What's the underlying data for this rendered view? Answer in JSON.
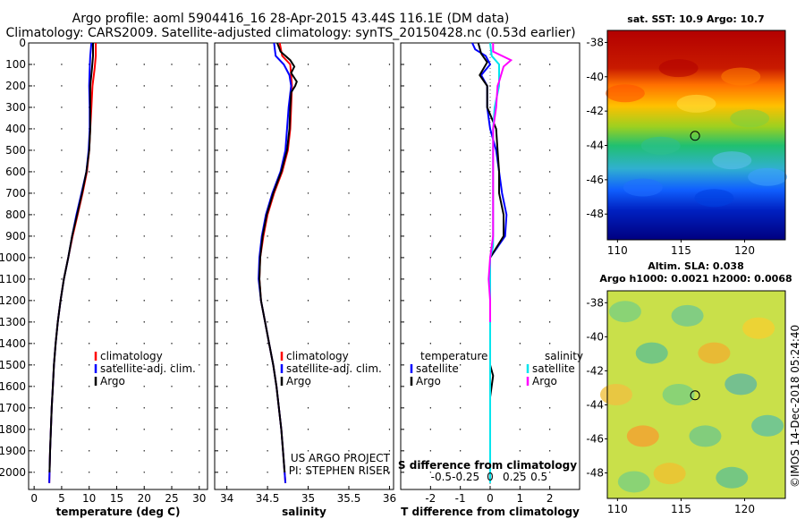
{
  "header": {
    "title_line1": "Argo profile: aoml 5904416_16 28-Apr-2015 43.44S 116.1E (DM data)",
    "title_line2": "Climatology: CARS2009. Satellite-adjusted climatology: synTS_20150428.nc (0.53d earlier)"
  },
  "colors": {
    "climatology": "#ff0000",
    "satellite_adj": "#0000ff",
    "argo": "#000000",
    "satellite_salinity": "#00e5ee",
    "argo_salinity": "#ff00ff"
  },
  "chart_data": [
    {
      "type": "line",
      "panel": "temperature",
      "xlabel": "temperature (deg C)",
      "xlim": [
        -1,
        31.5
      ],
      "xticks": [
        "0",
        "5",
        "10",
        "15",
        "20",
        "25",
        "30"
      ],
      "ylim": [
        0,
        2080
      ],
      "yticks": [
        "0",
        "100",
        "200",
        "300",
        "400",
        "500",
        "600",
        "700",
        "800",
        "900",
        "1000",
        "1100",
        "1200",
        "1300",
        "1400",
        "1500",
        "1600",
        "1700",
        "1800",
        "1900",
        "2000"
      ],
      "legend": [
        "climatology",
        "satellite-adj. clim.",
        "Argo"
      ],
      "series": [
        {
          "name": "climatology",
          "color": "#ff0000",
          "points": [
            [
              11.2,
              0
            ],
            [
              11.2,
              60
            ],
            [
              11.0,
              120
            ],
            [
              10.6,
              200
            ],
            [
              10.4,
              300
            ],
            [
              10.2,
              400
            ],
            [
              10.0,
              500
            ],
            [
              9.6,
              600
            ],
            [
              8.8,
              700
            ],
            [
              7.9,
              800
            ],
            [
              7.0,
              900
            ],
            [
              6.2,
              1000
            ],
            [
              5.4,
              1100
            ],
            [
              4.8,
              1200
            ],
            [
              4.3,
              1300
            ],
            [
              3.9,
              1400
            ],
            [
              3.6,
              1500
            ],
            [
              3.4,
              1600
            ],
            [
              3.2,
              1700
            ],
            [
              3.05,
              1800
            ],
            [
              2.9,
              1900
            ],
            [
              2.8,
              2000
            ],
            [
              2.75,
              2050
            ]
          ]
        },
        {
          "name": "satellite-adj. clim.",
          "color": "#0000ff",
          "points": [
            [
              10.4,
              0
            ],
            [
              10.2,
              60
            ],
            [
              10.1,
              120
            ],
            [
              10.0,
              200
            ],
            [
              10.1,
              300
            ],
            [
              10.1,
              400
            ],
            [
              9.9,
              500
            ],
            [
              9.5,
              600
            ],
            [
              8.6,
              700
            ],
            [
              7.7,
              800
            ],
            [
              6.9,
              900
            ],
            [
              6.2,
              1000
            ],
            [
              5.4,
              1100
            ],
            [
              4.8,
              1200
            ],
            [
              4.3,
              1300
            ],
            [
              3.9,
              1400
            ],
            [
              3.6,
              1500
            ],
            [
              3.4,
              1600
            ],
            [
              3.2,
              1700
            ],
            [
              3.05,
              1800
            ],
            [
              2.9,
              1900
            ],
            [
              2.8,
              2000
            ],
            [
              2.75,
              2050
            ]
          ]
        },
        {
          "name": "Argo",
          "color": "#000000",
          "points": [
            [
              10.7,
              0
            ],
            [
              10.7,
              60
            ],
            [
              10.5,
              120
            ],
            [
              10.2,
              200
            ],
            [
              10.2,
              300
            ],
            [
              10.2,
              400
            ],
            [
              10.0,
              500
            ],
            [
              9.5,
              600
            ],
            [
              8.7,
              700
            ],
            [
              7.8,
              800
            ],
            [
              6.9,
              900
            ],
            [
              6.2,
              1000
            ],
            [
              5.4,
              1100
            ],
            [
              4.8,
              1200
            ],
            [
              4.3,
              1300
            ],
            [
              3.9,
              1400
            ],
            [
              3.6,
              1500
            ],
            [
              3.4,
              1600
            ],
            [
              3.2,
              1700
            ],
            [
              3.05,
              1800
            ],
            [
              2.9,
              1900
            ],
            [
              2.8,
              2000
            ]
          ]
        }
      ]
    },
    {
      "type": "line",
      "panel": "salinity",
      "xlabel": "salinity",
      "xlim": [
        33.85,
        36.05
      ],
      "xticks": [
        "34",
        "34.5",
        "35",
        "35.5",
        "36"
      ],
      "ylim": [
        0,
        2080
      ],
      "legend": [
        "climatology",
        "satellite-adj. clim.",
        "Argo"
      ],
      "series": [
        {
          "name": "climatology",
          "color": "#ff0000",
          "points": [
            [
              34.65,
              0
            ],
            [
              34.68,
              60
            ],
            [
              34.78,
              100
            ],
            [
              34.79,
              150
            ],
            [
              34.8,
              200
            ],
            [
              34.79,
              300
            ],
            [
              34.78,
              400
            ],
            [
              34.75,
              500
            ],
            [
              34.68,
              600
            ],
            [
              34.58,
              700
            ],
            [
              34.5,
              800
            ],
            [
              34.45,
              900
            ],
            [
              34.41,
              1000
            ],
            [
              34.4,
              1100
            ],
            [
              34.42,
              1200
            ],
            [
              34.47,
              1300
            ],
            [
              34.52,
              1400
            ],
            [
              34.57,
              1500
            ],
            [
              34.61,
              1600
            ],
            [
              34.64,
              1700
            ],
            [
              34.67,
              1800
            ],
            [
              34.69,
              1900
            ],
            [
              34.71,
              2000
            ],
            [
              34.72,
              2050
            ]
          ]
        },
        {
          "name": "satellite-adj. clim.",
          "color": "#0000ff",
          "points": [
            [
              34.58,
              0
            ],
            [
              34.6,
              60
            ],
            [
              34.7,
              100
            ],
            [
              34.77,
              150
            ],
            [
              34.79,
              200
            ],
            [
              34.76,
              300
            ],
            [
              34.74,
              400
            ],
            [
              34.72,
              500
            ],
            [
              34.66,
              600
            ],
            [
              34.56,
              700
            ],
            [
              34.48,
              800
            ],
            [
              34.43,
              900
            ],
            [
              34.4,
              1000
            ],
            [
              34.39,
              1100
            ],
            [
              34.42,
              1200
            ],
            [
              34.47,
              1300
            ],
            [
              34.52,
              1400
            ],
            [
              34.57,
              1500
            ],
            [
              34.61,
              1600
            ],
            [
              34.64,
              1700
            ],
            [
              34.67,
              1800
            ],
            [
              34.69,
              1900
            ],
            [
              34.71,
              2000
            ],
            [
              34.72,
              2050
            ]
          ]
        },
        {
          "name": "Argo",
          "color": "#000000",
          "points": [
            [
              34.62,
              0
            ],
            [
              34.66,
              40
            ],
            [
              34.78,
              80
            ],
            [
              34.83,
              110
            ],
            [
              34.79,
              140
            ],
            [
              34.86,
              180
            ],
            [
              34.84,
              200
            ],
            [
              34.79,
              230
            ],
            [
              34.78,
              300
            ],
            [
              34.77,
              400
            ],
            [
              34.74,
              500
            ],
            [
              34.67,
              600
            ],
            [
              34.57,
              700
            ],
            [
              34.49,
              800
            ],
            [
              34.44,
              900
            ],
            [
              34.41,
              1000
            ],
            [
              34.4,
              1100
            ],
            [
              34.42,
              1200
            ],
            [
              34.47,
              1300
            ],
            [
              34.52,
              1400
            ],
            [
              34.57,
              1500
            ],
            [
              34.61,
              1600
            ],
            [
              34.64,
              1700
            ],
            [
              34.67,
              1800
            ],
            [
              34.69,
              1900
            ],
            [
              34.71,
              2000
            ]
          ]
        }
      ]
    },
    {
      "type": "line",
      "panel": "difference",
      "xlabel": "T difference from climatology",
      "xlabel2": "S difference from climatology",
      "xlim": [
        -3,
        3
      ],
      "xticks": [
        "-2",
        "-1",
        "0",
        "1",
        "2"
      ],
      "xticks2": [
        "-0.5",
        "-0.25",
        "0",
        "0.25",
        "0.5"
      ],
      "ylim": [
        0,
        2080
      ],
      "legend_left": [
        "temperature",
        "satellite",
        "Argo"
      ],
      "legend_right": [
        "salinity",
        "satellite",
        "Argo"
      ],
      "series": [
        {
          "name": "satellite",
          "color": "#0000ff",
          "points": [
            [
              -0.6,
              0
            ],
            [
              -0.5,
              30
            ],
            [
              -0.15,
              60
            ],
            [
              0,
              100
            ],
            [
              -0.3,
              150
            ],
            [
              -0.1,
              200
            ],
            [
              -0.1,
              300
            ],
            [
              0,
              400
            ],
            [
              0.2,
              500
            ],
            [
              0.3,
              600
            ],
            [
              0.4,
              700
            ],
            [
              0.55,
              800
            ],
            [
              0.5,
              900
            ],
            [
              0,
              1000
            ],
            [
              0,
              2000
            ]
          ]
        },
        {
          "name": "Argo",
          "color": "#000000",
          "points": [
            [
              -0.4,
              0
            ],
            [
              -0.3,
              50
            ],
            [
              -0.1,
              90
            ],
            [
              -0.35,
              150
            ],
            [
              -0.1,
              200
            ],
            [
              -0.1,
              300
            ],
            [
              0.2,
              400
            ],
            [
              0.25,
              500
            ],
            [
              0.3,
              600
            ],
            [
              0.3,
              700
            ],
            [
              0.45,
              800
            ],
            [
              0.45,
              900
            ],
            [
              0,
              1000
            ],
            [
              0,
              1500
            ],
            [
              0.1,
              1550
            ],
            [
              0,
              1650
            ],
            [
              0,
              2000
            ]
          ]
        },
        {
          "name": "satellite",
          "color": "#00e5ee",
          "points": [
            [
              0.0,
              0
            ],
            [
              0.05,
              60
            ],
            [
              0.3,
              100
            ],
            [
              0.3,
              200
            ],
            [
              0.15,
              300
            ],
            [
              0.1,
              400
            ],
            [
              0.1,
              500
            ],
            [
              0.1,
              600
            ],
            [
              0.1,
              700
            ],
            [
              0.1,
              800
            ],
            [
              0.1,
              900
            ],
            [
              0.1,
              950
            ],
            [
              0,
              1000
            ],
            [
              0,
              2050
            ]
          ]
        },
        {
          "name": "Argo",
          "color": "#ff00ff",
          "points": [
            [
              0.1,
              0
            ],
            [
              0.1,
              40
            ],
            [
              0.7,
              80
            ],
            [
              0.45,
              110
            ],
            [
              0.3,
              180
            ],
            [
              0.25,
              200
            ],
            [
              0.2,
              300
            ],
            [
              0.1,
              400
            ],
            [
              0.1,
              500
            ],
            [
              0.1,
              600
            ],
            [
              0.1,
              700
            ],
            [
              0.1,
              800
            ],
            [
              0.1,
              900
            ],
            [
              0,
              1000
            ],
            [
              -0.05,
              1100
            ],
            [
              0,
              1200
            ],
            [
              0,
              1300
            ]
          ]
        }
      ]
    }
  ],
  "credit": {
    "line1": "US ARGO PROJECT",
    "line2": "PI: STEPHEN RISER"
  },
  "maps": {
    "sst": {
      "title": "sat. SST: 10.9 Argo: 10.7",
      "lat_ticks": [
        "-38",
        "-40",
        "-42",
        "-44",
        "-46",
        "-48"
      ],
      "lon_ticks": [
        "110",
        "115",
        "120"
      ]
    },
    "sla": {
      "title_line1": "Altim. SLA: 0.038",
      "title_line2": "Argo h1000: 0.0021 h2000: 0.0068",
      "lat_ticks": [
        "-38",
        "-40",
        "-42",
        "-44",
        "-46",
        "-48"
      ],
      "lon_ticks": [
        "110",
        "115",
        "120"
      ]
    }
  },
  "imos_stamp": "©IMOS 14-Dec-2018 05:24:40"
}
